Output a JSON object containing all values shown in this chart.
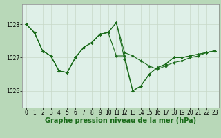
{
  "title": "Graphe pression niveau de la mer (hPa)",
  "background_color": "#cce8d4",
  "plot_bg_color": "#dff0e8",
  "line_color": "#1a6b1a",
  "grid_color": "#c8d8c8",
  "xlim": [
    -0.5,
    23.5
  ],
  "ylim": [
    1025.5,
    1028.6
  ],
  "yticks": [
    1026,
    1027,
    1028
  ],
  "xticks": [
    0,
    1,
    2,
    3,
    4,
    5,
    6,
    7,
    8,
    9,
    10,
    11,
    12,
    13,
    14,
    15,
    16,
    17,
    18,
    19,
    20,
    21,
    22,
    23
  ],
  "series": [
    [
      1028.0,
      1027.75,
      1027.2,
      1027.05,
      1026.6,
      1026.55,
      1027.0,
      1027.3,
      1027.45,
      1027.7,
      1027.75,
      1028.05,
      1026.95,
      1026.0,
      1026.15,
      1026.5,
      1026.7,
      1026.8,
      1027.0,
      1027.0,
      1027.05,
      1027.1,
      1027.15,
      1027.2
    ],
    [
      1028.0,
      1027.75,
      1027.2,
      1027.05,
      1026.6,
      1026.55,
      1027.0,
      1027.3,
      1027.45,
      1027.7,
      1027.75,
      1028.05,
      1027.15,
      1027.05,
      1026.9,
      1026.75,
      1026.65,
      1026.75,
      1026.85,
      1026.9,
      1027.0,
      1027.05,
      1027.15,
      1027.2
    ],
    [
      1028.0,
      1027.75,
      1027.2,
      1027.05,
      1026.6,
      1026.55,
      1027.0,
      1027.3,
      1027.45,
      1027.7,
      1027.75,
      1027.05,
      1027.05,
      1026.0,
      1026.15,
      1026.5,
      1026.7,
      1026.8,
      1027.0,
      1027.0,
      1027.05,
      1027.1,
      1027.15,
      1027.2
    ]
  ],
  "title_fontsize": 7,
  "tick_fontsize": 5.5
}
